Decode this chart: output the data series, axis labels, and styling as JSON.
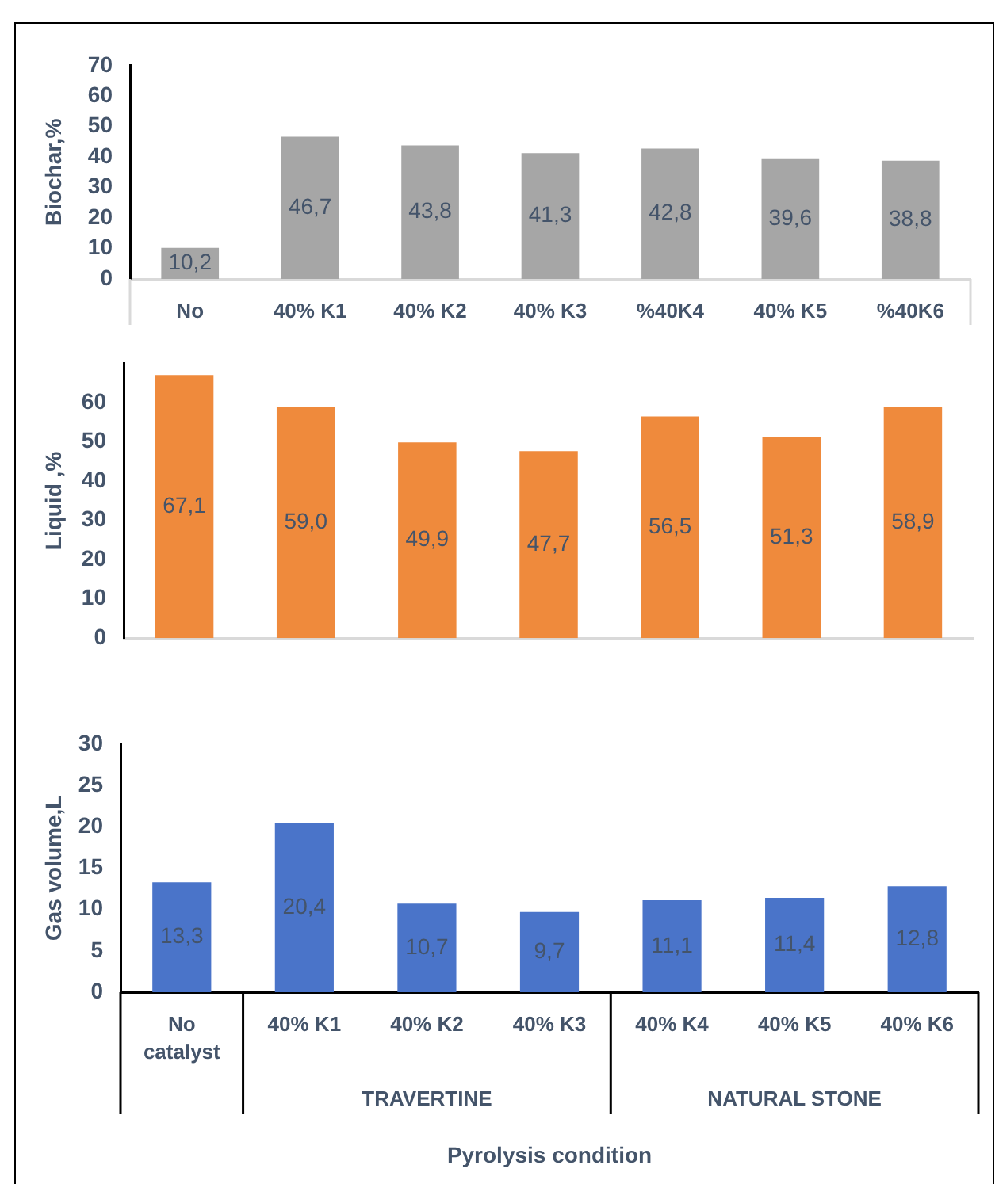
{
  "chart_data": [
    {
      "type": "bar",
      "ylabel": "Biochar,%",
      "categories": [
        "No",
        "40% K1",
        "40% K2",
        "40% K3",
        "%40K4",
        "40% K5",
        "%40K6"
      ],
      "values": [
        10.2,
        46.7,
        43.8,
        41.3,
        42.8,
        39.6,
        38.8
      ],
      "value_labels": [
        "10,2",
        "46,7",
        "43,8",
        "41,3",
        "42,8",
        "39,6",
        "38,8"
      ],
      "color": "#a6a6a6",
      "ylim": [
        0,
        70
      ],
      "yticks": [
        0,
        10,
        20,
        30,
        40,
        50,
        60,
        70
      ]
    },
    {
      "type": "bar",
      "ylabel": "Liquid ,%",
      "categories": [
        null,
        null,
        null,
        null,
        null,
        null,
        null
      ],
      "values": [
        67.1,
        59.0,
        49.9,
        47.7,
        56.5,
        51.3,
        58.9
      ],
      "value_labels": [
        "67,1",
        "59,0",
        "49,9",
        "47,7",
        "56,5",
        "51,3",
        "58,9"
      ],
      "color": "#ef8a3c",
      "ylim": [
        0,
        70
      ],
      "yticks": [
        0,
        10,
        20,
        30,
        40,
        50,
        60
      ],
      "tick_labels": "y"
    },
    {
      "type": "bar",
      "xlabel": "Pyrolysis condition",
      "ylabel": "Gas volume,L",
      "categories": [
        "No catalyst",
        "40% K1",
        "40% K2",
        "40% K3",
        "40% K4",
        "40% K5",
        "40% K6"
      ],
      "values": [
        13.3,
        20.4,
        10.7,
        9.7,
        11.1,
        11.4,
        12.8
      ],
      "value_labels": [
        "13,3",
        "20,4",
        "10,7",
        "9,7",
        "11,1",
        "11,4",
        "12,8"
      ],
      "color": "#4a74c9",
      "ylim": [
        0,
        30
      ],
      "yticks": [
        0,
        5,
        10,
        15,
        20,
        25,
        30
      ],
      "annotations": [
        "TRAVERTINE",
        "NATURAL STONE"
      ]
    }
  ]
}
